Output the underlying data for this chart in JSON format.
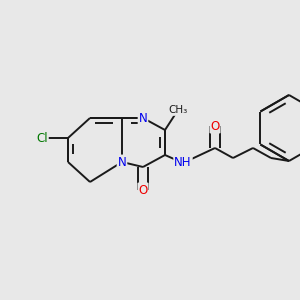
{
  "background_color": "#e8e8e8",
  "bond_color": "#1a1a1a",
  "bond_width": 1.4,
  "atom_colors": {
    "N": "#0000ee",
    "O": "#ee0000",
    "Cl": "#007700",
    "C": "#1a1a1a",
    "H": "#1a1a1a"
  },
  "font_size": 8.5,
  "figsize": [
    3.0,
    3.0
  ],
  "dpi": 100,
  "BL": 0.33,
  "sep": 0.055,
  "shorten": 0.07
}
